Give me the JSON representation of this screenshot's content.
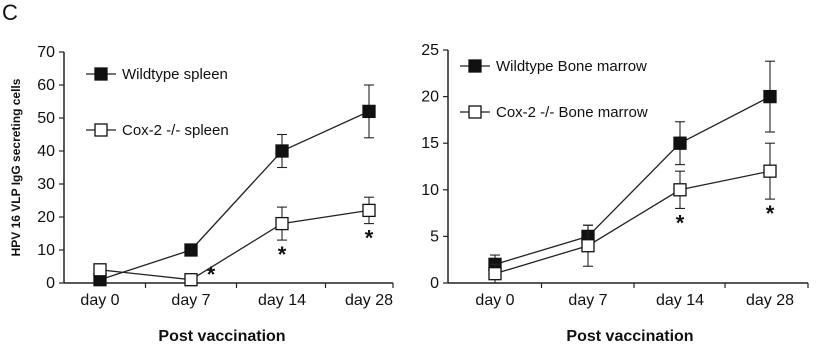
{
  "panel_label": "C",
  "chart_data": [
    {
      "type": "line",
      "categories": [
        "day 0",
        "day 7",
        "day 14",
        "day 28"
      ],
      "ylabel": "HPV 16 VLP IgG secreting cells",
      "xlabel": "Post vaccination",
      "ylim": [
        0,
        70
      ],
      "yticks": [
        0,
        10,
        20,
        30,
        40,
        50,
        60,
        70
      ],
      "legend_position": "top-left",
      "series": [
        {
          "name": "Wildtype  spleen",
          "marker": "filled-square",
          "values": [
            1,
            10,
            40,
            52
          ],
          "errors": [
            0,
            1,
            5,
            8
          ]
        },
        {
          "name": "Cox-2 -/- spleen",
          "marker": "open-square",
          "values": [
            4,
            1,
            18,
            22
          ],
          "errors": [
            1,
            0,
            5,
            4
          ]
        }
      ],
      "annotations": [
        {
          "category": "day 7",
          "text": "*"
        },
        {
          "category": "day 14",
          "text": "*"
        },
        {
          "category": "day 28",
          "text": "*"
        }
      ]
    },
    {
      "type": "line",
      "categories": [
        "day 0",
        "day 7",
        "day 14",
        "day 28"
      ],
      "ylabel": "",
      "xlabel": "Post vaccination",
      "ylim": [
        0,
        25
      ],
      "yticks": [
        0,
        5,
        10,
        15,
        20,
        25
      ],
      "legend_position": "top-left",
      "series": [
        {
          "name": "Wildtype Bone marrow",
          "marker": "filled-square",
          "values": [
            2,
            5,
            15,
            20
          ],
          "errors": [
            1,
            1.2,
            2.3,
            3.8
          ]
        },
        {
          "name": "Cox-2 -/- Bone marrow",
          "marker": "open-square",
          "values": [
            1,
            4,
            10,
            12
          ],
          "errors": [
            1,
            2.2,
            2,
            3
          ]
        }
      ],
      "annotations": [
        {
          "category": "day 14",
          "text": "*"
        },
        {
          "category": "day 28",
          "text": "*"
        }
      ]
    }
  ]
}
